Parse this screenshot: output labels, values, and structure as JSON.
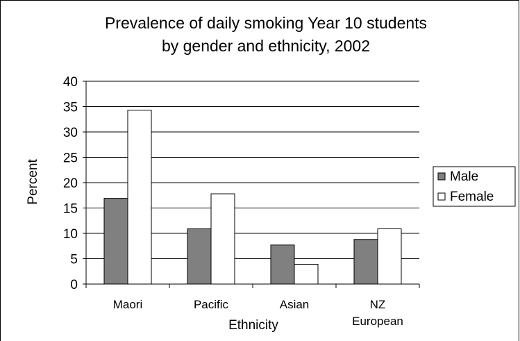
{
  "chart_data": {
    "type": "bar",
    "title_lines": [
      "Prevalence of daily smoking Year 10 students",
      "by gender and ethnicity, 2002"
    ],
    "xlabel": "Ethnicity",
    "ylabel": "Percent",
    "categories": [
      [
        "Maori"
      ],
      [
        "Pacific"
      ],
      [
        "Asian"
      ],
      [
        "NZ",
        "European"
      ]
    ],
    "series": [
      {
        "name": "Male",
        "color": "#808080",
        "values": [
          16.9,
          10.9,
          7.7,
          8.8
        ]
      },
      {
        "name": "Female",
        "color": "#ffffff",
        "values": [
          34.3,
          17.8,
          3.9,
          10.9
        ]
      }
    ],
    "ylim": [
      0,
      40
    ],
    "yticks": [
      0,
      5,
      10,
      15,
      20,
      25,
      30,
      35,
      40
    ],
    "grid": true,
    "legend_position": "right"
  }
}
